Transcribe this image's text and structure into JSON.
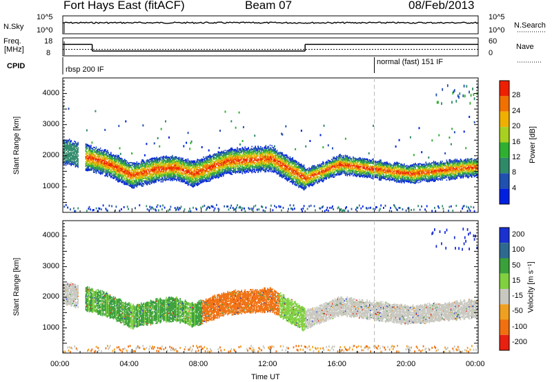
{
  "header": {
    "station": "Fort Hays East (fitACF)",
    "beam": "Beam 07",
    "date": "08/Feb/2013"
  },
  "panels": {
    "nsky": {
      "label": "N.Sky",
      "right_label": "N.Search",
      "left_ticks": [
        "10^5",
        "10^0"
      ],
      "right_ticks": [
        "10^5",
        "10^0"
      ]
    },
    "freq": {
      "label_line1": "Freq.",
      "label_line2": "[MHz]",
      "right_label": "Nave",
      "left_ticks": [
        "18",
        "8"
      ],
      "right_ticks": [
        "60",
        "0"
      ],
      "freq_steps": [
        {
          "from": 0,
          "to": 1.7,
          "value": 14.5
        },
        {
          "from": 1.7,
          "to": 14.0,
          "value": 10.5
        },
        {
          "from": 14.0,
          "to": 24.0,
          "value": 14.5
        }
      ],
      "nave_level": 11.5
    },
    "cpid": {
      "label": "CPID",
      "modes": [
        {
          "text": "rbsp 200 IF",
          "start": 0
        },
        {
          "text": "normal (fast) 151 IF",
          "start": 18.0
        }
      ]
    },
    "power": {
      "ylabel": "Slant Range [km]",
      "cblabel": "Power [dB]",
      "yticks": [
        "1000",
        "2000",
        "3000",
        "4000"
      ],
      "cb_ticks": [
        "4",
        "8",
        "12",
        "16",
        "20",
        "24",
        "28"
      ],
      "colors": [
        "#0020e0",
        "#2050b0",
        "#2f8a6a",
        "#30b030",
        "#a8d020",
        "#f0b000",
        "#f07000",
        "#ee2000"
      ]
    },
    "velocity": {
      "ylabel": "Slant Range [km]",
      "cblabel": "Velocity [m s⁻¹]",
      "yticks": [
        "1000",
        "2000",
        "3000",
        "4000"
      ],
      "cb_ticks": [
        "200",
        "100",
        "50",
        "15",
        "-15",
        "-50",
        "-100",
        "-200"
      ],
      "colors": [
        "#1a30d0",
        "#2e6a90",
        "#3aa03a",
        "#80d040",
        "#c8c8c0",
        "#f0a020",
        "#f07010",
        "#e82010"
      ]
    }
  },
  "xaxis": {
    "label": "Time UT",
    "ticks": [
      "00:00",
      "04:00",
      "08:00",
      "12:00",
      "16:00",
      "20:00",
      "00:00"
    ],
    "range_hours": [
      0,
      24
    ]
  },
  "chart_data": {
    "type": "heatmap",
    "title": "Fort Hays East (fitACF)",
    "xlabel": "Time UT",
    "ylabel": "Slant Range [km]",
    "xlim_hours": [
      0,
      24
    ],
    "ylim": [
      180,
      4500
    ],
    "power_band_center_km": [
      {
        "t": 0.3,
        "r": 2100
      },
      {
        "t": 2.5,
        "r": 1750
      },
      {
        "t": 4.0,
        "r": 1350
      },
      {
        "t": 5.5,
        "r": 1550
      },
      {
        "t": 6.5,
        "r": 1600
      },
      {
        "t": 7.5,
        "r": 1400
      },
      {
        "t": 9.5,
        "r": 1800
      },
      {
        "t": 12.0,
        "r": 1900
      },
      {
        "t": 14.0,
        "r": 1250
      },
      {
        "t": 16.0,
        "r": 1700
      },
      {
        "t": 20.0,
        "r": 1400
      },
      {
        "t": 23.5,
        "r": 1600
      }
    ],
    "velocity_regions": [
      {
        "from": 1.0,
        "to": 8.0,
        "r_center": 1550,
        "value": 50
      },
      {
        "from": 8.0,
        "to": 12.5,
        "r_center": 1850,
        "value": -50
      },
      {
        "from": 14.0,
        "to": 24.0,
        "r_center": 1650,
        "value": 0
      }
    ],
    "annotation_line_hours": 18.0
  }
}
